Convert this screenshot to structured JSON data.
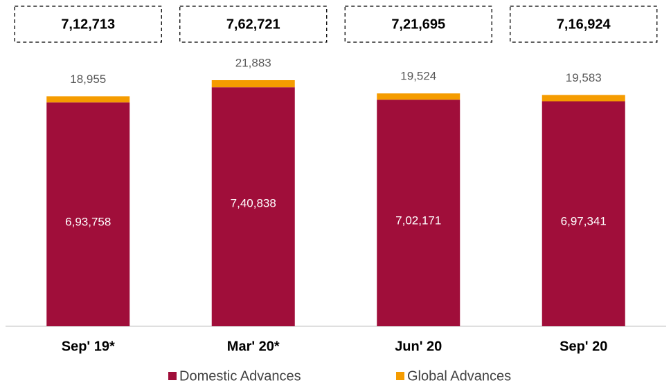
{
  "chart_data": {
    "type": "stacked_bar",
    "categories": [
      "Sep' 19*",
      "Mar' 20*",
      "Jun' 20",
      "Sep' 20"
    ],
    "series": [
      {
        "name": "Domestic Advances",
        "color": "#a00e3a",
        "values": [
          693758,
          740838,
          702171,
          697341
        ],
        "value_labels": [
          "6,93,758",
          "7,40,838",
          "7,02,171",
          "6,97,341"
        ]
      },
      {
        "name": "Global Advances",
        "color": "#f59c00",
        "values": [
          18955,
          21883,
          19524,
          19583
        ],
        "value_labels": [
          "18,955",
          "21,883",
          "19,524",
          "19,583"
        ]
      }
    ],
    "totals": {
      "values": [
        712713,
        762721,
        721695,
        716924
      ],
      "value_labels": [
        "7,12,713",
        "7,62,721",
        "7,21,695",
        "7,16,924"
      ]
    },
    "legend": "bottom"
  }
}
